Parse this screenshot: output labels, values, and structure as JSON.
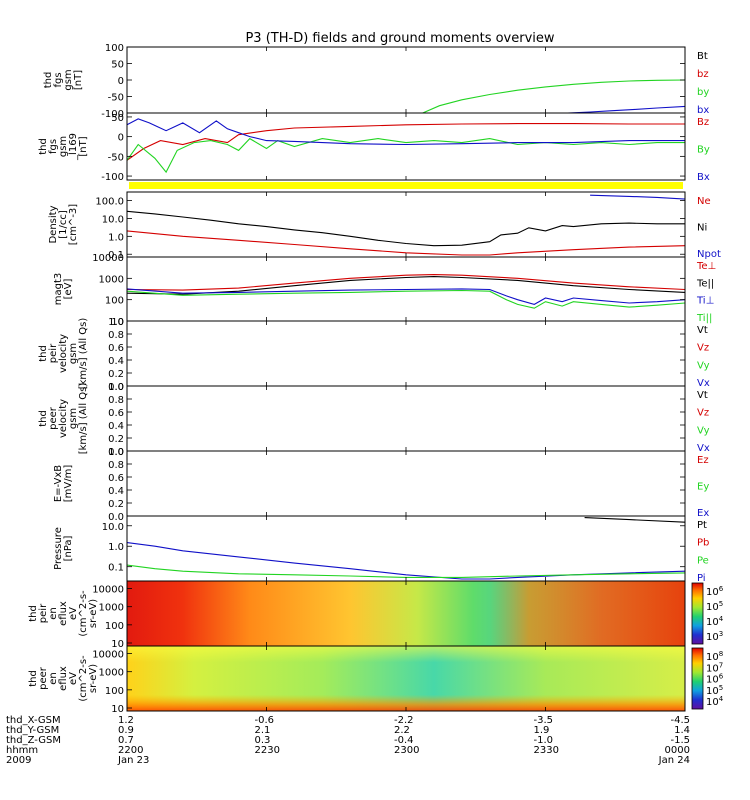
{
  "title": "P3 (TH-D) fields and ground moments overview",
  "colors": {
    "black": "#000000",
    "red": "#d40000",
    "green": "#22d422",
    "blue": "#1010c8",
    "yellow": "#ffff00"
  },
  "chart_data": [
    {
      "type": "line",
      "ylabel": [
        "thd",
        "fgs",
        "gsm",
        "[nT]"
      ],
      "yticks": [
        100,
        50,
        0,
        -50,
        -100
      ],
      "ylim": [
        -100,
        100
      ],
      "legend": [
        {
          "text": "Bt",
          "color": "black"
        },
        {
          "text": "bz",
          "color": "red"
        },
        {
          "text": "by",
          "color": "green"
        },
        {
          "text": "bx",
          "color": "blue"
        }
      ],
      "series": [
        {
          "color": "green",
          "x": [
            0.53,
            0.56,
            0.6,
            0.65,
            0.7,
            0.75,
            0.8,
            0.85,
            0.9,
            0.95,
            1.0
          ],
          "y": [
            -100,
            -78,
            -60,
            -44,
            -31,
            -21,
            -13,
            -7,
            -3,
            -1,
            0
          ]
        },
        {
          "color": "blue",
          "x": [
            0.79,
            0.83,
            0.87,
            0.91,
            0.95,
            1.0
          ],
          "y": [
            -100,
            -97,
            -93,
            -89,
            -85,
            -80
          ]
        }
      ]
    },
    {
      "type": "line",
      "ylabel": [
        "thd",
        "fgs",
        "gsm",
        "_l169",
        "[nT]"
      ],
      "yticks": [
        50,
        0,
        -50,
        -100
      ],
      "ylim": [
        -110,
        60
      ],
      "legend": [
        {
          "text": "Bz",
          "color": "red"
        },
        {
          "text": "By",
          "color": "green"
        },
        {
          "text": "Bx",
          "color": "blue"
        }
      ],
      "series": [
        {
          "color": "red",
          "x": [
            0,
            0.03,
            0.06,
            0.1,
            0.14,
            0.18,
            0.2,
            0.25,
            0.3,
            0.4,
            0.5,
            0.6,
            0.7,
            0.8,
            0.9,
            1.0
          ],
          "y": [
            -60,
            -30,
            -10,
            -20,
            -5,
            -15,
            5,
            15,
            22,
            26,
            30,
            32,
            33,
            33,
            32,
            32
          ]
        },
        {
          "color": "green",
          "x": [
            0,
            0.02,
            0.05,
            0.07,
            0.09,
            0.12,
            0.15,
            0.18,
            0.2,
            0.22,
            0.25,
            0.27,
            0.3,
            0.35,
            0.4,
            0.45,
            0.5,
            0.55,
            0.6,
            0.65,
            0.7,
            0.75,
            0.8,
            0.85,
            0.9,
            0.95,
            1.0
          ],
          "y": [
            -60,
            -20,
            -55,
            -90,
            -35,
            -15,
            -10,
            -20,
            -35,
            -5,
            -30,
            -10,
            -25,
            -5,
            -15,
            -5,
            -15,
            -10,
            -15,
            -5,
            -20,
            -15,
            -20,
            -15,
            -20,
            -15,
            -15
          ]
        },
        {
          "color": "blue",
          "x": [
            0,
            0.02,
            0.04,
            0.07,
            0.1,
            0.13,
            0.16,
            0.18,
            0.2,
            0.22,
            0.25,
            0.3,
            0.35,
            0.4,
            0.5,
            0.6,
            0.7,
            0.8,
            0.9,
            1.0
          ],
          "y": [
            30,
            45,
            35,
            15,
            35,
            10,
            40,
            20,
            10,
            0,
            -10,
            -12,
            -15,
            -18,
            -20,
            -18,
            -15,
            -15,
            -10,
            -10
          ]
        }
      ]
    },
    {
      "type": "line",
      "ylabel": [
        "Density",
        "[1/cc]",
        "[cm^-3]"
      ],
      "yticks": [
        "100.0",
        "10.0",
        "1.0",
        "0.1"
      ],
      "yscale": "log",
      "ylim": [
        0.07,
        300
      ],
      "legend": [
        {
          "text": "Ne",
          "color": "red"
        },
        {
          "text": "Ni",
          "color": "black"
        },
        {
          "text": "Npot",
          "color": "blue"
        }
      ],
      "series": [
        {
          "color": "black",
          "x": [
            0,
            0.05,
            0.1,
            0.15,
            0.2,
            0.25,
            0.3,
            0.35,
            0.4,
            0.45,
            0.5,
            0.55,
            0.6,
            0.65,
            0.67,
            0.7,
            0.72,
            0.75,
            0.78,
            0.8,
            0.85,
            0.9,
            0.95,
            1.0
          ],
          "y": [
            25,
            18,
            12,
            8,
            5,
            3.5,
            2.3,
            1.6,
            1.0,
            0.6,
            0.4,
            0.3,
            0.32,
            0.5,
            1.2,
            1.5,
            3,
            2,
            4,
            3.5,
            5,
            5.5,
            5,
            5
          ]
        },
        {
          "color": "red",
          "x": [
            0,
            0.1,
            0.2,
            0.3,
            0.4,
            0.5,
            0.6,
            0.65,
            0.7,
            0.8,
            0.9,
            1.0
          ],
          "y": [
            2,
            1,
            0.6,
            0.35,
            0.2,
            0.12,
            0.09,
            0.09,
            0.12,
            0.18,
            0.25,
            0.3
          ]
        },
        {
          "color": "blue",
          "x": [
            0.83,
            0.9,
            0.95,
            1.0
          ],
          "y": [
            200,
            170,
            150,
            120
          ]
        }
      ]
    },
    {
      "type": "line",
      "ylabel": [
        "magt3",
        "[eV]"
      ],
      "yticks": [
        "10000",
        "1000",
        "100",
        "10"
      ],
      "yscale": "log",
      "ylim": [
        10,
        10000
      ],
      "legend": [
        {
          "text": "Te⊥",
          "color": "red"
        },
        {
          "text": "Te||",
          "color": "black"
        },
        {
          "text": "Ti⊥",
          "color": "blue"
        },
        {
          "text": "Ti||",
          "color": "green"
        }
      ],
      "series": [
        {
          "color": "red",
          "x": [
            0,
            0.1,
            0.2,
            0.3,
            0.4,
            0.5,
            0.55,
            0.6,
            0.7,
            0.8,
            0.9,
            1.0
          ],
          "y": [
            300,
            280,
            350,
            600,
            1000,
            1400,
            1500,
            1400,
            1000,
            600,
            400,
            300
          ]
        },
        {
          "color": "black",
          "x": [
            0,
            0.1,
            0.2,
            0.3,
            0.4,
            0.5,
            0.55,
            0.6,
            0.7,
            0.8,
            0.9,
            1.0
          ],
          "y": [
            200,
            180,
            250,
            450,
            800,
            1100,
            1200,
            1100,
            800,
            450,
            300,
            220
          ]
        },
        {
          "color": "blue",
          "x": [
            0,
            0.1,
            0.2,
            0.3,
            0.4,
            0.5,
            0.6,
            0.65,
            0.68,
            0.7,
            0.73,
            0.75,
            0.78,
            0.8,
            0.85,
            0.9,
            0.95,
            1.0
          ],
          "y": [
            320,
            200,
            220,
            250,
            280,
            300,
            320,
            300,
            150,
            100,
            60,
            120,
            80,
            120,
            90,
            70,
            80,
            100
          ]
        },
        {
          "color": "green",
          "x": [
            0,
            0.1,
            0.2,
            0.3,
            0.4,
            0.5,
            0.6,
            0.65,
            0.68,
            0.7,
            0.73,
            0.75,
            0.78,
            0.8,
            0.85,
            0.9,
            0.95,
            1.0
          ],
          "y": [
            250,
            160,
            180,
            200,
            220,
            250,
            270,
            250,
            100,
            60,
            40,
            80,
            50,
            80,
            60,
            45,
            55,
            70
          ]
        }
      ]
    },
    {
      "type": "line",
      "ylabel": [
        "thd",
        "peir",
        "velocity",
        "gsm",
        "[km/s] (All Qs)"
      ],
      "yticks": [
        "1.0",
        "0.8",
        "0.6",
        "0.4",
        "0.2",
        "0.0"
      ],
      "ylim": [
        0,
        1
      ],
      "legend": [
        {
          "text": "Vt",
          "color": "black"
        },
        {
          "text": "Vz",
          "color": "red"
        },
        {
          "text": "Vy",
          "color": "green"
        },
        {
          "text": "Vx",
          "color": "blue"
        }
      ],
      "series": []
    },
    {
      "type": "line",
      "ylabel": [
        "thd",
        "peer",
        "velocity",
        "gsm",
        "[km/s] (All Qs)"
      ],
      "yticks": [
        "1.0",
        "0.8",
        "0.6",
        "0.4",
        "0.2",
        "0.0"
      ],
      "ylim": [
        0,
        1
      ],
      "legend": [
        {
          "text": "Vt",
          "color": "black"
        },
        {
          "text": "Vz",
          "color": "red"
        },
        {
          "text": "Vy",
          "color": "green"
        },
        {
          "text": "Vx",
          "color": "blue"
        }
      ],
      "series": []
    },
    {
      "type": "line",
      "ylabel": [
        "E=-VxB",
        "[mV/m]"
      ],
      "yticks": [
        "1.0",
        "0.8",
        "0.6",
        "0.4",
        "0.2",
        "0.0"
      ],
      "ylim": [
        0,
        1
      ],
      "legend": [
        {
          "text": "Ez",
          "color": "red"
        },
        {
          "text": "Ey",
          "color": "green"
        },
        {
          "text": "Ex",
          "color": "blue"
        }
      ],
      "series": []
    },
    {
      "type": "line",
      "ylabel": [
        "Pressure",
        "[nPa]"
      ],
      "yticks": [
        "10.0",
        "1.0",
        "0.1"
      ],
      "yscale": "log",
      "ylim": [
        0.02,
        30
      ],
      "legend": [
        {
          "text": "Pt",
          "color": "black"
        },
        {
          "text": "Pb",
          "color": "red"
        },
        {
          "text": "Pe",
          "color": "green"
        },
        {
          "text": "Pi",
          "color": "blue"
        }
      ],
      "series": [
        {
          "color": "blue",
          "x": [
            0,
            0.05,
            0.1,
            0.2,
            0.3,
            0.4,
            0.5,
            0.6,
            0.65,
            0.7,
            0.8,
            0.9,
            1.0
          ],
          "y": [
            1.5,
            1.0,
            0.6,
            0.3,
            0.15,
            0.08,
            0.04,
            0.025,
            0.025,
            0.03,
            0.04,
            0.05,
            0.06
          ]
        },
        {
          "color": "green",
          "x": [
            0,
            0.05,
            0.1,
            0.2,
            0.3,
            0.4,
            0.5,
            0.6,
            0.7,
            0.8,
            0.9,
            1.0
          ],
          "y": [
            0.12,
            0.08,
            0.06,
            0.045,
            0.04,
            0.035,
            0.03,
            0.03,
            0.035,
            0.04,
            0.045,
            0.05
          ]
        },
        {
          "color": "black",
          "x": [
            0.82,
            0.9,
            1.0
          ],
          "y": [
            25,
            20,
            15
          ]
        }
      ]
    },
    {
      "type": "heatmap",
      "ylabel": [
        "thd",
        "peir",
        "en",
        "eflux",
        "eV",
        "(cm^2-s-",
        "sr-eV)"
      ],
      "yticks": [
        "10000",
        "1000",
        "100",
        "10"
      ],
      "colorbar_ticks": [
        "10^6",
        "10^5",
        "10^4",
        "10^3"
      ]
    },
    {
      "type": "heatmap",
      "ylabel": [
        "thd",
        "peer",
        "en",
        "eflux",
        "eV",
        "(cm^2-s-",
        "sr-eV)"
      ],
      "yticks": [
        "10000",
        "1000",
        "100",
        "10"
      ],
      "colorbar_ticks": [
        "10^8",
        "10^7",
        "10^6",
        "10^5",
        "10^4"
      ]
    }
  ],
  "xaxis": {
    "row_labels": [
      "thd_X-GSM",
      "thd_Y-GSM",
      "thd_Z-GSM",
      "hhmm",
      "2009"
    ],
    "columns": [
      [
        "1.2",
        "0.9",
        "0.7",
        "2200",
        "Jan 23"
      ],
      [
        "-0.6",
        "2.1",
        "0.3",
        "2230",
        ""
      ],
      [
        "-2.2",
        "2.2",
        "-0.4",
        "2300",
        ""
      ],
      [
        "-3.5",
        "1.9",
        "-1.0",
        "2330",
        ""
      ],
      [
        "-4.5",
        "1.4",
        "-1.5",
        "0000",
        "Jan 24"
      ]
    ]
  }
}
